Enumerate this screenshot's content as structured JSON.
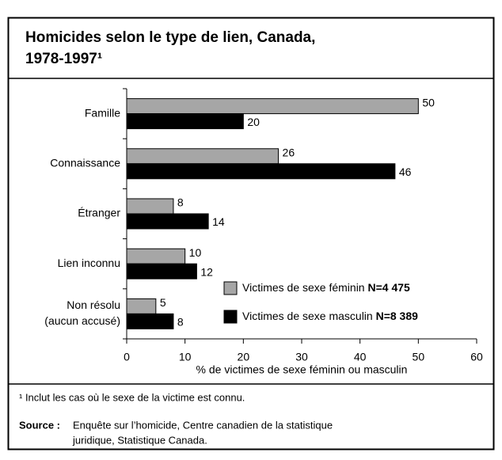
{
  "chart_data": {
    "type": "bar",
    "orientation": "horizontal",
    "title": [
      "Homicides selon le type de lien, Canada,",
      "1978-1997¹"
    ],
    "categories": [
      "Famille",
      "Connaissance",
      "Étranger",
      "Lien inconnu",
      [
        "Non résolu",
        "(aucun accusé)"
      ]
    ],
    "series": [
      {
        "name": "Victimes de sexe féminin",
        "n": "N=4 475",
        "color": "#a6a6a6",
        "values": [
          50,
          26,
          8,
          10,
          5
        ]
      },
      {
        "name": "Victimes de sexe masculin",
        "n": "N=8 389",
        "color": "#000000",
        "values": [
          20,
          46,
          14,
          12,
          8
        ]
      }
    ],
    "xlim": [
      0,
      60
    ],
    "xticks": [
      0,
      10,
      20,
      30,
      40,
      50,
      60
    ],
    "xlabel": "% de victimes de sexe féminin ou masculin",
    "footnote": "¹ Inclut les cas où le sexe de la victime est connu.",
    "source_label": "Source :",
    "source": [
      "Enquête sur l’homicide, Centre canadien de la statistique",
      "juridique, Statistique Canada."
    ]
  }
}
